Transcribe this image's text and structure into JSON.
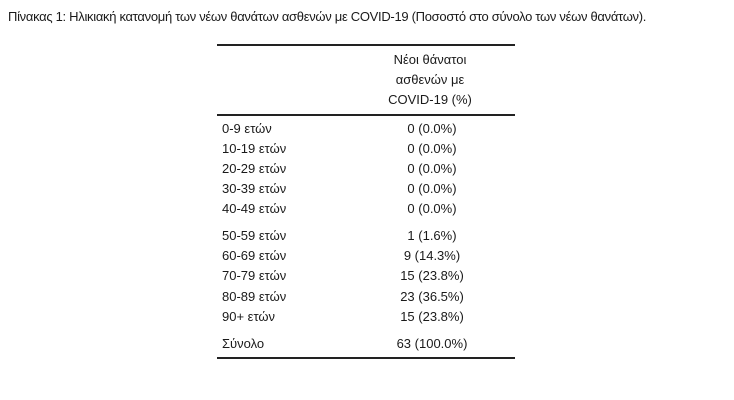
{
  "title": "Πίνακας 1: Ηλικιακή κατανομή των νέων θανάτων ασθενών με COVID-19 (Ποσοστό στο σύνολο των νέων θανάτων).",
  "table": {
    "header": [
      "Νέοι θάνατοι",
      "ασθενών με",
      "COVID-19 (%)"
    ],
    "rows": [
      {
        "label": "0-9 ετών",
        "value": "0 (0.0%)"
      },
      {
        "label": "10-19 ετών",
        "value": "0 (0.0%)"
      },
      {
        "label": "20-29 ετών",
        "value": "0 (0.0%)"
      },
      {
        "label": "30-39 ετών",
        "value": "0 (0.0%)"
      },
      {
        "label": "40-49 ετών",
        "value": "0 (0.0%)"
      },
      {
        "label": "50-59 ετών",
        "value": "1 (1.6%)"
      },
      {
        "label": "60-69 ετών",
        "value": "9 (14.3%)"
      },
      {
        "label": "70-79 ετών",
        "value": "15 (23.8%)"
      },
      {
        "label": "80-89 ετών",
        "value": "23 (36.5%)"
      },
      {
        "label": "90+ ετών",
        "value": "15 (23.8%)"
      },
      {
        "label": "Σύνολο",
        "value": "63 (100.0%)"
      }
    ]
  }
}
